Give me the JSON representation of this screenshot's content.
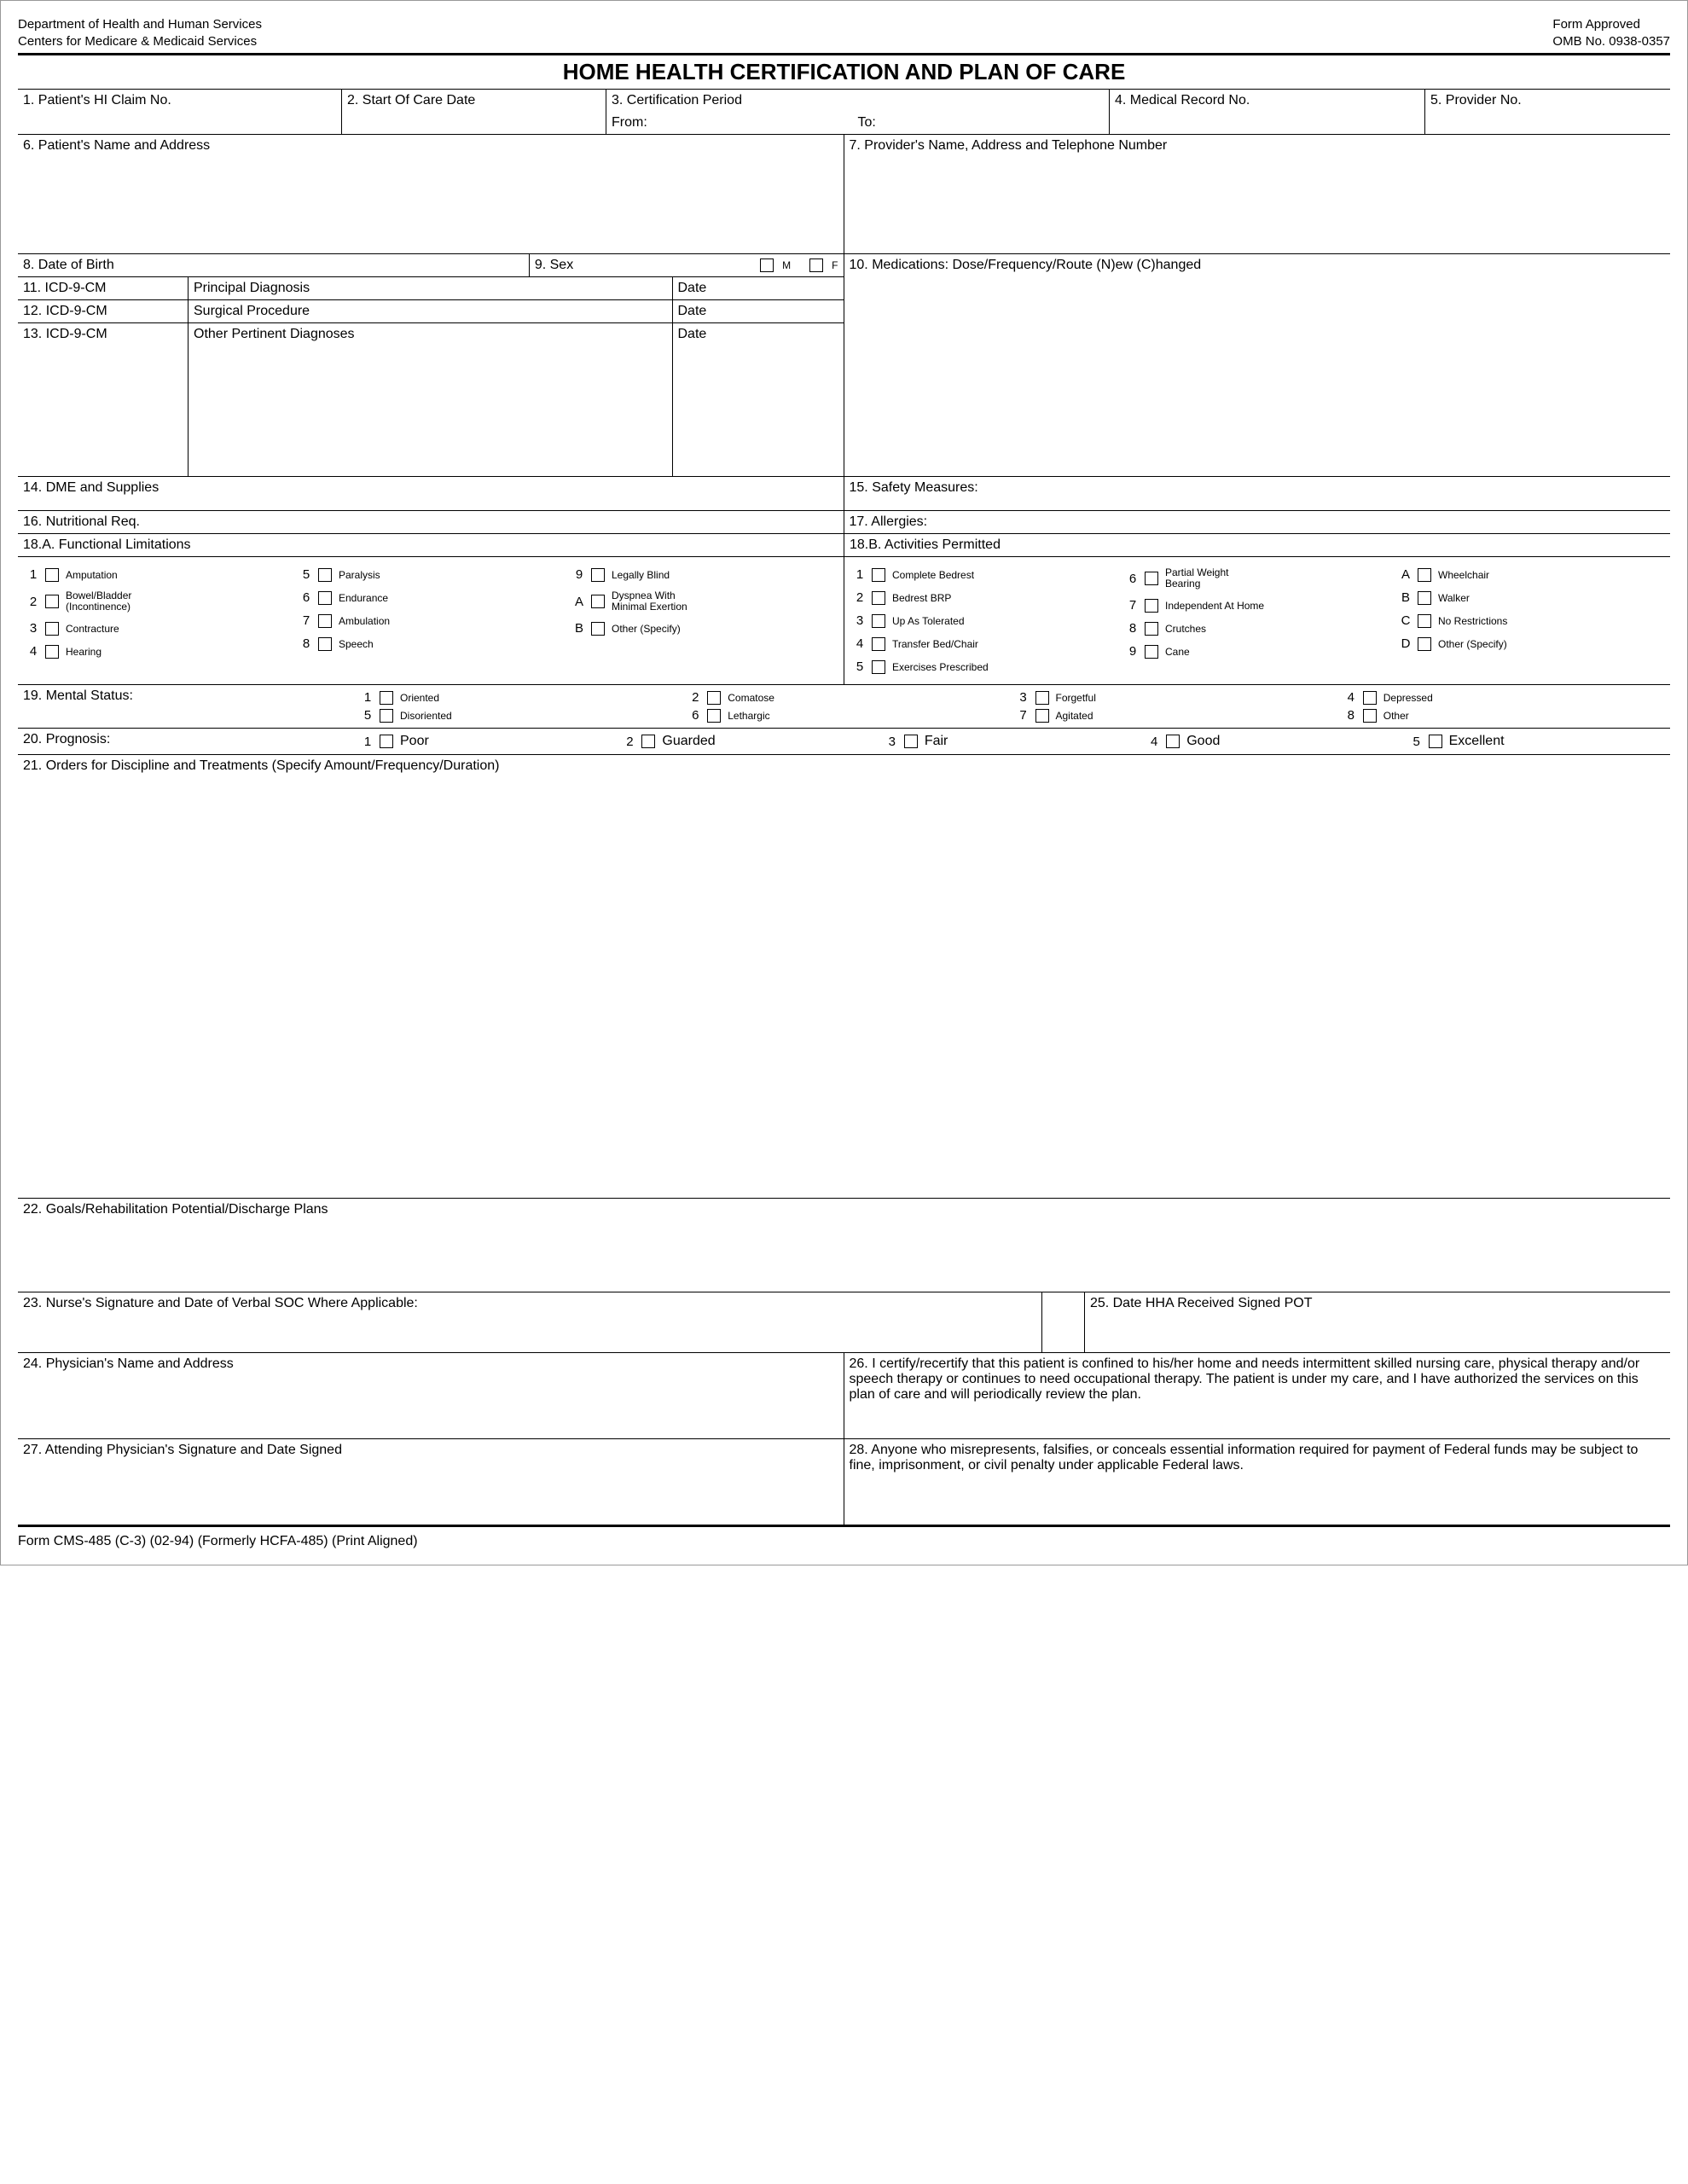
{
  "header": {
    "dept1": "Department of Health and Human Services",
    "dept2": "Centers for Medicare & Medicaid Services",
    "approved": "Form Approved",
    "omb": "OMB No. 0938-0357"
  },
  "title": "HOME HEALTH CERTIFICATION AND PLAN OF CARE",
  "f1": "1. Patient's HI Claim No.",
  "f2": "2. Start Of Care Date",
  "f3": "3. Certification Period",
  "f3from": "From:",
  "f3to": "To:",
  "f4": "4. Medical Record No.",
  "f5": "5. Provider No.",
  "f6": "6. Patient's Name and Address",
  "f7": "7. Provider's Name, Address and Telephone Number",
  "f8": "8. Date of Birth",
  "f9": "9. Sex",
  "f9m": "M",
  "f9f": "F",
  "f10": "10. Medications:  Dose/Frequency/Route (N)ew (C)hanged",
  "f11": "11. ICD-9-CM",
  "f11b": "Principal Diagnosis",
  "f12": "12. ICD-9-CM",
  "f12b": "Surgical Procedure",
  "f13": "13. ICD-9-CM",
  "f13b": "Other Pertinent Diagnoses",
  "date": "Date",
  "f14": "14. DME and Supplies",
  "f15": "15. Safety Measures:",
  "f16": "16. Nutritional Req.",
  "f17": "17. Allergies:",
  "f18a": "18.A. Functional Limitations",
  "f18a_items": {
    "c1": [
      [
        "1",
        "Amputation"
      ],
      [
        "2",
        "Bowel/Bladder (Incontinence)"
      ],
      [
        "3",
        "Contracture"
      ],
      [
        "4",
        "Hearing"
      ]
    ],
    "c2": [
      [
        "5",
        "Paralysis"
      ],
      [
        "6",
        "Endurance"
      ],
      [
        "7",
        "Ambulation"
      ],
      [
        "8",
        "Speech"
      ]
    ],
    "c3": [
      [
        "9",
        "Legally Blind"
      ],
      [
        "A",
        "Dyspnea With Minimal Exertion"
      ],
      [
        "B",
        "Other (Specify)"
      ]
    ]
  },
  "f18b": "18.B. Activities Permitted",
  "f18b_items": {
    "c1": [
      [
        "1",
        "Complete Bedrest"
      ],
      [
        "2",
        "Bedrest BRP"
      ],
      [
        "3",
        "Up As Tolerated"
      ],
      [
        "4",
        "Transfer Bed/Chair"
      ],
      [
        "5",
        "Exercises Prescribed"
      ]
    ],
    "c2": [
      [
        "6",
        "Partial Weight Bearing"
      ],
      [
        "7",
        "Independent At Home"
      ],
      [
        "8",
        "Crutches"
      ],
      [
        "9",
        "Cane"
      ]
    ],
    "c3": [
      [
        "A",
        "Wheelchair"
      ],
      [
        "B",
        "Walker"
      ],
      [
        "C",
        "No Restrictions"
      ],
      [
        "D",
        "Other (Specify)"
      ]
    ]
  },
  "f19": "19. Mental Status:",
  "f19_items": [
    [
      "1",
      "Oriented"
    ],
    [
      "2",
      "Comatose"
    ],
    [
      "3",
      "Forgetful"
    ],
    [
      "4",
      "Depressed"
    ],
    [
      "5",
      "Disoriented"
    ],
    [
      "6",
      "Lethargic"
    ],
    [
      "7",
      "Agitated"
    ],
    [
      "8",
      "Other"
    ]
  ],
  "f20": "20. Prognosis:",
  "f20_items": [
    [
      "1",
      "Poor"
    ],
    [
      "2",
      "Guarded"
    ],
    [
      "3",
      "Fair"
    ],
    [
      "4",
      "Good"
    ],
    [
      "5",
      "Excellent"
    ]
  ],
  "f21": "21. Orders for Discipline and Treatments (Specify Amount/Frequency/Duration)",
  "f22": "22. Goals/Rehabilitation Potential/Discharge Plans",
  "f23": "23.  Nurse's Signature and Date of Verbal SOC Where Applicable:",
  "f24": "24.  Physician's Name and Address",
  "f25": "25.  Date HHA Received Signed POT",
  "f26": "26.  I certify/recertify that this patient is confined to his/her home and needs intermittent skilled nursing care, physical therapy and/or speech therapy or continues to need occupational therapy. The patient is under my care, and I have authorized the services on this plan of care and will periodically review the plan.",
  "f27": "27.  Attending Physician's Signature and Date Signed",
  "f28": "28.  Anyone who misrepresents, falsifies, or conceals essential information required for payment of Federal funds may be subject to fine, imprisonment, or civil penalty under applicable Federal laws.",
  "footer": "Form CMS-485 (C-3) (02-94) (Formerly HCFA-485) (Print Aligned)"
}
